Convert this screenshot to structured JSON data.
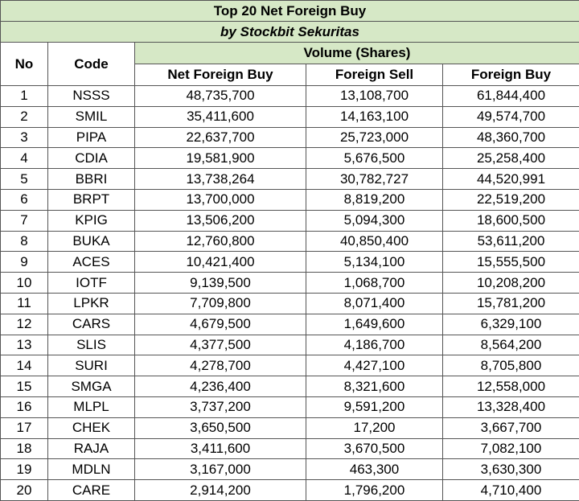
{
  "title": "Top 20 Net Foreign Buy",
  "subtitle": "by Stockbit Sekuritas",
  "headers": {
    "no": "No",
    "code": "Code",
    "volume_group": "Volume (Shares)",
    "net_foreign_buy": "Net Foreign Buy",
    "foreign_sell": "Foreign Sell",
    "foreign_buy": "Foreign Buy"
  },
  "colors": {
    "header_fill": "#d6e8c6",
    "grid": "#555555"
  },
  "rows": [
    {
      "no": "1",
      "code": "NSSS",
      "net_foreign_buy": "48,735,700",
      "foreign_sell": "13,108,700",
      "foreign_buy": "61,844,400"
    },
    {
      "no": "2",
      "code": "SMIL",
      "net_foreign_buy": "35,411,600",
      "foreign_sell": "14,163,100",
      "foreign_buy": "49,574,700"
    },
    {
      "no": "3",
      "code": "PIPA",
      "net_foreign_buy": "22,637,700",
      "foreign_sell": "25,723,000",
      "foreign_buy": "48,360,700"
    },
    {
      "no": "4",
      "code": "CDIA",
      "net_foreign_buy": "19,581,900",
      "foreign_sell": "5,676,500",
      "foreign_buy": "25,258,400"
    },
    {
      "no": "5",
      "code": "BBRI",
      "net_foreign_buy": "13,738,264",
      "foreign_sell": "30,782,727",
      "foreign_buy": "44,520,991"
    },
    {
      "no": "6",
      "code": "BRPT",
      "net_foreign_buy": "13,700,000",
      "foreign_sell": "8,819,200",
      "foreign_buy": "22,519,200"
    },
    {
      "no": "7",
      "code": "KPIG",
      "net_foreign_buy": "13,506,200",
      "foreign_sell": "5,094,300",
      "foreign_buy": "18,600,500"
    },
    {
      "no": "8",
      "code": "BUKA",
      "net_foreign_buy": "12,760,800",
      "foreign_sell": "40,850,400",
      "foreign_buy": "53,611,200"
    },
    {
      "no": "9",
      "code": "ACES",
      "net_foreign_buy": "10,421,400",
      "foreign_sell": "5,134,100",
      "foreign_buy": "15,555,500"
    },
    {
      "no": "10",
      "code": "IOTF",
      "net_foreign_buy": "9,139,500",
      "foreign_sell": "1,068,700",
      "foreign_buy": "10,208,200"
    },
    {
      "no": "11",
      "code": "LPKR",
      "net_foreign_buy": "7,709,800",
      "foreign_sell": "8,071,400",
      "foreign_buy": "15,781,200"
    },
    {
      "no": "12",
      "code": "CARS",
      "net_foreign_buy": "4,679,500",
      "foreign_sell": "1,649,600",
      "foreign_buy": "6,329,100"
    },
    {
      "no": "13",
      "code": "SLIS",
      "net_foreign_buy": "4,377,500",
      "foreign_sell": "4,186,700",
      "foreign_buy": "8,564,200"
    },
    {
      "no": "14",
      "code": "SURI",
      "net_foreign_buy": "4,278,700",
      "foreign_sell": "4,427,100",
      "foreign_buy": "8,705,800"
    },
    {
      "no": "15",
      "code": "SMGA",
      "net_foreign_buy": "4,236,400",
      "foreign_sell": "8,321,600",
      "foreign_buy": "12,558,000"
    },
    {
      "no": "16",
      "code": "MLPL",
      "net_foreign_buy": "3,737,200",
      "foreign_sell": "9,591,200",
      "foreign_buy": "13,328,400"
    },
    {
      "no": "17",
      "code": "CHEK",
      "net_foreign_buy": "3,650,500",
      "foreign_sell": "17,200",
      "foreign_buy": "3,667,700"
    },
    {
      "no": "18",
      "code": "RAJA",
      "net_foreign_buy": "3,411,600",
      "foreign_sell": "3,670,500",
      "foreign_buy": "7,082,100"
    },
    {
      "no": "19",
      "code": "MDLN",
      "net_foreign_buy": "3,167,000",
      "foreign_sell": "463,300",
      "foreign_buy": "3,630,300"
    },
    {
      "no": "20",
      "code": "CARE",
      "net_foreign_buy": "2,914,200",
      "foreign_sell": "1,796,200",
      "foreign_buy": "4,710,400"
    }
  ]
}
